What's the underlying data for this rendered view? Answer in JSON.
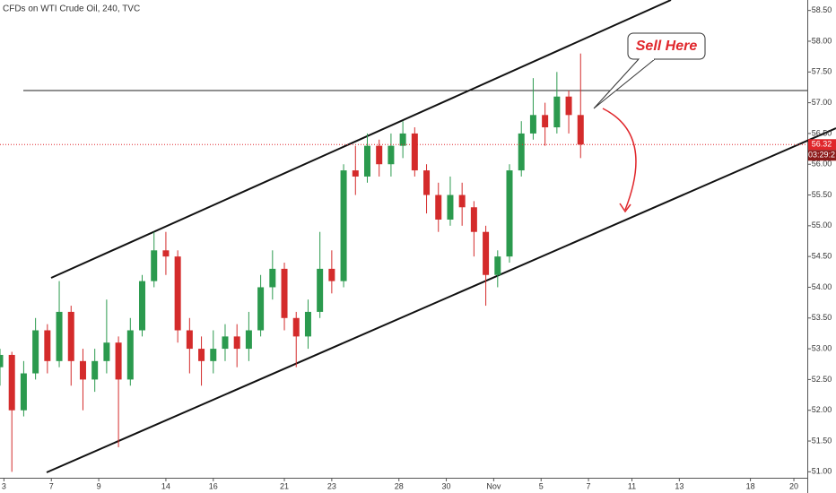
{
  "chart_data": {
    "type": "candlestick",
    "title": "CFDs on WTI Crude Oil, 240, TVC",
    "up_color": "#2b9a4e",
    "down_color": "#d42b2b",
    "x": [
      0,
      3,
      6,
      9,
      12,
      15,
      18,
      21,
      24,
      27,
      30,
      33,
      36,
      39,
      42,
      45,
      48,
      51,
      54,
      57,
      60,
      63,
      66,
      69,
      72,
      75,
      78,
      81,
      84,
      87,
      90,
      93,
      96,
      99,
      102,
      105,
      108,
      111,
      114,
      117,
      120,
      123,
      126,
      129,
      132,
      135,
      138,
      141,
      144,
      147
    ],
    "open": [
      52.7,
      52.9,
      52.0,
      52.6,
      53.3,
      52.8,
      53.6,
      52.8,
      52.5,
      52.8,
      53.1,
      52.5,
      53.3,
      54.1,
      54.6,
      54.5,
      53.3,
      53.0,
      52.8,
      53.0,
      53.2,
      53.0,
      53.3,
      54.0,
      54.3,
      53.5,
      53.2,
      53.6,
      54.3,
      54.1,
      55.9,
      55.8,
      56.3,
      56.0,
      56.3,
      56.5,
      55.9,
      55.5,
      55.1,
      55.5,
      55.3,
      54.9,
      54.2,
      54.5,
      55.9,
      56.5,
      56.8,
      56.6,
      57.1,
      56.8
    ],
    "high": [
      53.0,
      52.95,
      52.8,
      53.5,
      53.4,
      54.1,
      53.7,
      53.0,
      53.0,
      53.8,
      53.2,
      53.5,
      54.2,
      54.9,
      54.9,
      54.6,
      53.5,
      53.2,
      53.3,
      53.4,
      53.4,
      53.6,
      54.2,
      54.6,
      54.4,
      53.6,
      53.8,
      54.9,
      54.6,
      56.0,
      56.3,
      56.5,
      56.4,
      56.5,
      56.7,
      56.6,
      56.0,
      55.7,
      55.8,
      55.7,
      55.4,
      55.0,
      54.6,
      56.0,
      56.7,
      57.4,
      57.0,
      57.5,
      57.2,
      57.8
    ],
    "low": [
      52.4,
      51.0,
      51.9,
      52.5,
      52.6,
      52.7,
      52.4,
      52.0,
      52.3,
      52.6,
      51.4,
      52.4,
      53.2,
      54.0,
      54.2,
      53.1,
      52.6,
      52.4,
      52.6,
      52.8,
      52.7,
      52.8,
      53.2,
      53.8,
      53.3,
      52.7,
      53.0,
      53.5,
      53.9,
      54.0,
      55.5,
      55.7,
      55.8,
      55.8,
      56.1,
      55.8,
      55.2,
      54.9,
      55.0,
      55.0,
      54.5,
      53.7,
      54.0,
      54.4,
      55.8,
      56.4,
      56.3,
      56.5,
      56.5,
      56.1
    ],
    "close": [
      52.9,
      52.0,
      52.6,
      53.3,
      52.8,
      53.6,
      52.8,
      52.5,
      52.8,
      53.1,
      52.5,
      53.3,
      54.1,
      54.6,
      54.5,
      53.3,
      53.0,
      52.8,
      53.0,
      53.2,
      53.0,
      53.3,
      54.0,
      54.3,
      53.5,
      53.2,
      53.6,
      54.3,
      54.1,
      55.9,
      55.8,
      56.3,
      56.0,
      56.3,
      56.5,
      55.9,
      55.5,
      55.1,
      55.5,
      55.3,
      54.9,
      54.2,
      54.5,
      55.9,
      56.5,
      56.8,
      56.6,
      57.1,
      56.8,
      56.32
    ],
    "xlim": [
      0,
      204.4
    ],
    "xticks": [
      {
        "value": 1,
        "label": "3"
      },
      {
        "value": 13,
        "label": "7"
      },
      {
        "value": 25,
        "label": "9"
      },
      {
        "value": 42,
        "label": "14"
      },
      {
        "value": 54,
        "label": "16"
      },
      {
        "value": 72,
        "label": "21"
      },
      {
        "value": 84,
        "label": "23"
      },
      {
        "value": 101,
        "label": "28"
      },
      {
        "value": 113,
        "label": "30"
      },
      {
        "value": 125,
        "label": "Nov"
      },
      {
        "value": 137,
        "label": "5"
      },
      {
        "value": 149,
        "label": "7"
      },
      {
        "value": 160,
        "label": "11"
      },
      {
        "value": 172,
        "label": "13"
      },
      {
        "value": 190,
        "label": "18"
      },
      {
        "value": 201,
        "label": "20"
      }
    ],
    "ylim": [
      50.83,
      58.67
    ],
    "yticks": [
      {
        "value": 51,
        "label": "51.00"
      },
      {
        "value": 51.5,
        "label": "51.50"
      },
      {
        "value": 52,
        "label": "52.00"
      },
      {
        "value": 52.5,
        "label": "52.50"
      },
      {
        "value": 53,
        "label": "53.00"
      },
      {
        "value": 53.5,
        "label": "53.50"
      },
      {
        "value": 54,
        "label": "54.00"
      },
      {
        "value": 54.5,
        "label": "54.50"
      },
      {
        "value": 55,
        "label": "55.00"
      },
      {
        "value": 55.5,
        "label": "55.50"
      },
      {
        "value": 56,
        "label": "56.00"
      },
      {
        "value": 56.5,
        "label": "56.50"
      },
      {
        "value": 57,
        "label": "57.00"
      },
      {
        "value": 57.5,
        "label": "57.50"
      },
      {
        "value": 58,
        "label": "58.00"
      },
      {
        "value": 58.5,
        "label": "58.50"
      }
    ],
    "last_price": {
      "value": 56.32,
      "label": "56.32"
    },
    "countdown": "03:29:2",
    "annotation": "Sell Here"
  }
}
